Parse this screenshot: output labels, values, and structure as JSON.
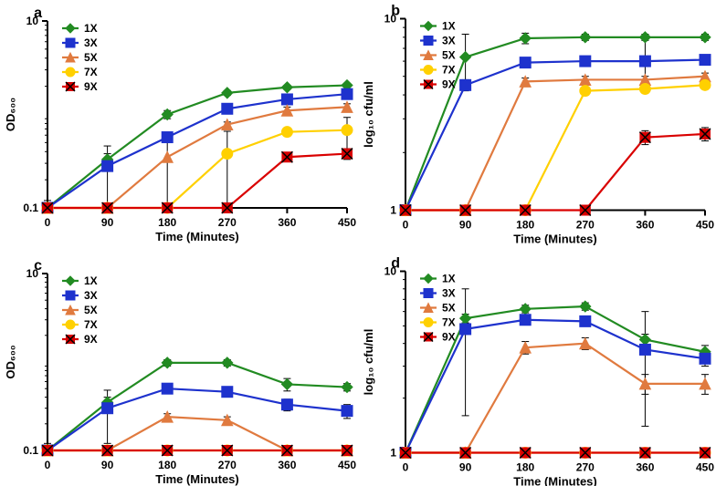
{
  "global": {
    "background_color": "#ffffff",
    "axis_color": "#000000",
    "axis_width": 2,
    "tick_fontsize": 12,
    "label_fontsize": 13,
    "panel_letter_fontsize": 16,
    "panel_letter_color": "#000000",
    "x_ticks": [
      0,
      90,
      180,
      270,
      360,
      450
    ],
    "x_label": "Time (Minutes)",
    "legend_items": [
      {
        "label": "1X",
        "color": "#228b22",
        "marker": "diamond"
      },
      {
        "label": "3X",
        "color": "#1e32cd",
        "marker": "square"
      },
      {
        "label": "5X",
        "color": "#e07a3f",
        "marker": "triangle"
      },
      {
        "label": "7X",
        "color": "#ffd000",
        "marker": "circle"
      },
      {
        "label": "9X",
        "color": "#d90000",
        "marker": "x"
      }
    ],
    "errorbar_color": "#000000",
    "errorbar_width": 1,
    "line_width": 2.2,
    "marker_size": 6
  },
  "panels": [
    {
      "id": "a",
      "letter": "a",
      "y_label": "OD₆₀₀",
      "ylim": [
        0.1,
        10
      ],
      "y_ticks": [
        0.1,
        10
      ],
      "y_tick_labels": [
        "0.1",
        "10"
      ],
      "y_scale": "log",
      "series": [
        {
          "key": "1X",
          "x": [
            0,
            90,
            180,
            270,
            360,
            450
          ],
          "y": [
            0.1,
            0.33,
            1.0,
            1.7,
            1.95,
            2.05
          ],
          "err": [
            0.02,
            0.05,
            0.1,
            0.1,
            0.1,
            0.1
          ]
        },
        {
          "key": "3X",
          "x": [
            0,
            90,
            180,
            270,
            360,
            450
          ],
          "y": [
            0.1,
            0.28,
            0.57,
            1.15,
            1.45,
            1.65
          ],
          "err": [
            0,
            0.18,
            0.05,
            0.08,
            0.1,
            0.1
          ]
        },
        {
          "key": "5X",
          "x": [
            0,
            90,
            180,
            270,
            360,
            450
          ],
          "y": [
            0.1,
            0.1,
            0.35,
            0.78,
            1.1,
            1.2
          ],
          "err": [
            0,
            0,
            0.28,
            0.05,
            0.1,
            0.1
          ]
        },
        {
          "key": "7X",
          "x": [
            0,
            90,
            180,
            270,
            360,
            450
          ],
          "y": [
            0.1,
            0.1,
            0.1,
            0.38,
            0.65,
            0.68
          ],
          "err": [
            0,
            0,
            0,
            0.28,
            0.05,
            0.25
          ]
        },
        {
          "key": "9X",
          "x": [
            0,
            90,
            180,
            270,
            360,
            450
          ],
          "y": [
            0.1,
            0.1,
            0.1,
            0.1,
            0.35,
            0.38
          ],
          "err": [
            0,
            0,
            0,
            0,
            0,
            0.05
          ]
        }
      ]
    },
    {
      "id": "b",
      "letter": "b",
      "y_label": "log₁₀ cfu/ml",
      "ylim": [
        1,
        10
      ],
      "y_ticks": [
        1,
        10
      ],
      "y_tick_labels": [
        "1",
        "10"
      ],
      "y_scale": "log",
      "series": [
        {
          "key": "1X",
          "x": [
            0,
            90,
            180,
            270,
            360,
            450
          ],
          "y": [
            1,
            6.3,
            7.9,
            8,
            8,
            8
          ],
          "err": [
            0,
            2.0,
            0.5,
            0.3,
            0.3,
            0.3
          ]
        },
        {
          "key": "3X",
          "x": [
            0,
            90,
            180,
            270,
            360,
            450
          ],
          "y": [
            1,
            4.5,
            5.9,
            6.0,
            6.0,
            6.1
          ],
          "err": [
            0,
            0.3,
            0.3,
            0.2,
            1.8,
            0.2
          ]
        },
        {
          "key": "5X",
          "x": [
            0,
            90,
            180,
            270,
            360,
            450
          ],
          "y": [
            1,
            1,
            4.7,
            4.8,
            4.8,
            5.0
          ],
          "err": [
            0,
            0,
            0.2,
            0.2,
            0.2,
            0.2
          ]
        },
        {
          "key": "7X",
          "x": [
            0,
            90,
            180,
            270,
            360,
            450
          ],
          "y": [
            1,
            1,
            1,
            4.2,
            4.3,
            4.5
          ],
          "err": [
            0,
            0,
            0,
            0.2,
            0.2,
            0.2
          ]
        },
        {
          "key": "9X",
          "x": [
            0,
            90,
            180,
            270,
            360,
            450
          ],
          "y": [
            1,
            1,
            1,
            1,
            2.4,
            2.5
          ],
          "err": [
            0,
            0,
            0,
            0,
            0.2,
            0.2
          ]
        }
      ]
    },
    {
      "id": "c",
      "letter": "c",
      "y_label": "OD₆₀₀",
      "ylim": [
        0.1,
        10
      ],
      "y_ticks": [
        0.1,
        10
      ],
      "y_tick_labels": [
        "0.1",
        "10"
      ],
      "y_scale": "log",
      "series": [
        {
          "key": "1X",
          "x": [
            0,
            90,
            180,
            270,
            360,
            450
          ],
          "y": [
            0.1,
            0.35,
            0.98,
            0.98,
            0.56,
            0.52
          ],
          "err": [
            0.02,
            0.05,
            0.08,
            0.08,
            0.09,
            0.05
          ]
        },
        {
          "key": "3X",
          "x": [
            0,
            90,
            180,
            270,
            360,
            450
          ],
          "y": [
            0.1,
            0.3,
            0.5,
            0.46,
            0.33,
            0.28
          ],
          "err": [
            0,
            0.18,
            0.05,
            0.05,
            0.05,
            0.05
          ]
        },
        {
          "key": "5X",
          "x": [
            0,
            90,
            180,
            270,
            360,
            450
          ],
          "y": [
            0.1,
            0.1,
            0.24,
            0.22,
            0.1,
            0.1
          ],
          "err": [
            0,
            0,
            0.02,
            0.02,
            0,
            0
          ]
        },
        {
          "key": "7X",
          "x": [
            0,
            90,
            180,
            270,
            360,
            450
          ],
          "y": [
            0.1,
            0.1,
            0.1,
            0.1,
            0.1,
            0.1
          ],
          "err": [
            0,
            0,
            0,
            0,
            0,
            0
          ]
        },
        {
          "key": "9X",
          "x": [
            0,
            90,
            180,
            270,
            360,
            450
          ],
          "y": [
            0.1,
            0.1,
            0.1,
            0.1,
            0.1,
            0.1
          ],
          "err": [
            0,
            0,
            0,
            0,
            0,
            0
          ]
        }
      ]
    },
    {
      "id": "d",
      "letter": "d",
      "y_label": "log₁₀ cfu/ml",
      "ylim": [
        1,
        10
      ],
      "y_ticks": [
        1,
        10
      ],
      "y_tick_labels": [
        "1",
        "10"
      ],
      "y_scale": "log",
      "series": [
        {
          "key": "1X",
          "x": [
            0,
            90,
            180,
            270,
            360,
            450
          ],
          "y": [
            1,
            5.5,
            6.2,
            6.4,
            4.2,
            3.6
          ],
          "err": [
            0,
            0.3,
            0.3,
            0.3,
            0.3,
            0.3
          ]
        },
        {
          "key": "3X",
          "x": [
            0,
            90,
            180,
            270,
            360,
            450
          ],
          "y": [
            1,
            4.8,
            5.4,
            5.3,
            3.7,
            3.3
          ],
          "err": [
            0,
            3.2,
            0.3,
            0.3,
            2.3,
            0.3
          ]
        },
        {
          "key": "5X",
          "x": [
            0,
            90,
            180,
            270,
            360,
            450
          ],
          "y": [
            1,
            1,
            3.8,
            4.0,
            2.4,
            2.4
          ],
          "err": [
            0,
            0,
            0.3,
            0.3,
            0.3,
            0.3
          ]
        },
        {
          "key": "7X",
          "x": [
            0,
            90,
            180,
            270,
            360,
            450
          ],
          "y": [
            1,
            1,
            1,
            1,
            1,
            1
          ],
          "err": [
            0,
            0,
            0,
            0,
            0,
            0
          ]
        },
        {
          "key": "9X",
          "x": [
            0,
            90,
            180,
            270,
            360,
            450
          ],
          "y": [
            1,
            1,
            1,
            1,
            1,
            1
          ],
          "err": [
            0,
            0,
            0,
            0,
            0,
            0
          ]
        }
      ]
    }
  ]
}
